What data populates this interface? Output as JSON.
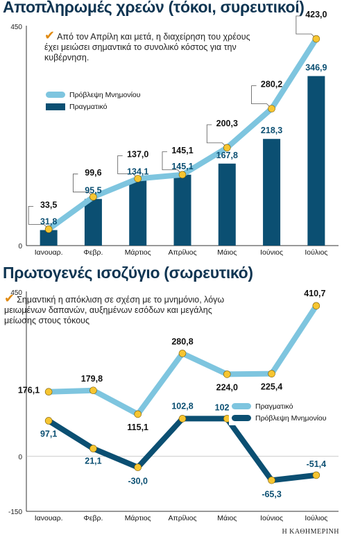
{
  "source_text": "Η ΚΑΘΗΜΕΡΙΝΗ",
  "colors": {
    "light": "#7ec5df",
    "dark": "#0b4f72",
    "marker": "#f6c531",
    "title": "#0f3552",
    "axis": "#333333"
  },
  "chart_data": [
    {
      "type": "bar+line",
      "title": "Αποπληρωμές χρεών (τόκοι, συρευτικοί)",
      "note": "Από τον Απρίλη και μετά, η διαχείρηση του χρέους έχει μειώσει σημαντικά το συνολικό κόστος για την κυβέρνηση.",
      "categories": [
        "Ιανουαρ.",
        "Φεβρ.",
        "Μάρτιος",
        "Απρίλιος",
        "Μάιος",
        "Ιούνιος",
        "Ιούλιος"
      ],
      "ylim": [
        0,
        450
      ],
      "yticks": [
        "450",
        "0"
      ],
      "series": [
        {
          "name": "Πρόβλεψη Μνημονίου",
          "kind": "line",
          "color": "#7ec5df",
          "values": [
            33.5,
            99.6,
            137.0,
            145.1,
            200.3,
            280.2,
            423.0
          ],
          "labels": [
            "33,5",
            "99,6",
            "137,0",
            "145,1",
            "200,3",
            "280,2",
            "423,0"
          ]
        },
        {
          "name": "Πραγματικό",
          "kind": "bar",
          "color": "#0b4f72",
          "values": [
            31.8,
            95.5,
            134.1,
            145.1,
            167.8,
            218.3,
            346.9
          ],
          "labels": [
            "31,8",
            "95,5",
            "134,1",
            "145,1",
            "167,8",
            "218,3",
            "346,9"
          ]
        }
      ],
      "legend": "upper-left"
    },
    {
      "type": "line",
      "title": "Πρωτογενές ισοζύγιο (σωρευτικό)",
      "note": "Σημαντική η απόκλιση σε σχέση με το μνημόνιο, λόγω μειωμένων δαπανών, αυξημένων εσόδων και μεγάλης μείωσης στους τόκους",
      "categories": [
        "Ιανουαρ.",
        "Φεβρ.",
        "Μάρτιος",
        "Απρίλιος",
        "Μάιος",
        "Ιούνιος",
        "Ιούλιος"
      ],
      "ylim": [
        -150,
        450
      ],
      "yticks": [
        "450",
        "0",
        "-150"
      ],
      "series": [
        {
          "name": "Πραγματικό",
          "kind": "line",
          "color": "#7ec5df",
          "values": [
            176.1,
            179.8,
            115.1,
            280.8,
            224.0,
            225.4,
            410.7
          ],
          "labels": [
            "176,1",
            "179,8",
            "115,1",
            "280,8",
            "224,0",
            "225,4",
            "410,7"
          ]
        },
        {
          "name": "Πρόβλεψη Μνημονίου",
          "kind": "line",
          "color": "#0b4f72",
          "values": [
            97.1,
            21.1,
            -30.0,
            102.8,
            102.8,
            -65.3,
            -51.4
          ],
          "labels": [
            "97,1",
            "21,1",
            "-30,0",
            "102,8",
            "102,8",
            "-65,3",
            "-51,4"
          ]
        }
      ],
      "legend": "middle-right"
    }
  ]
}
